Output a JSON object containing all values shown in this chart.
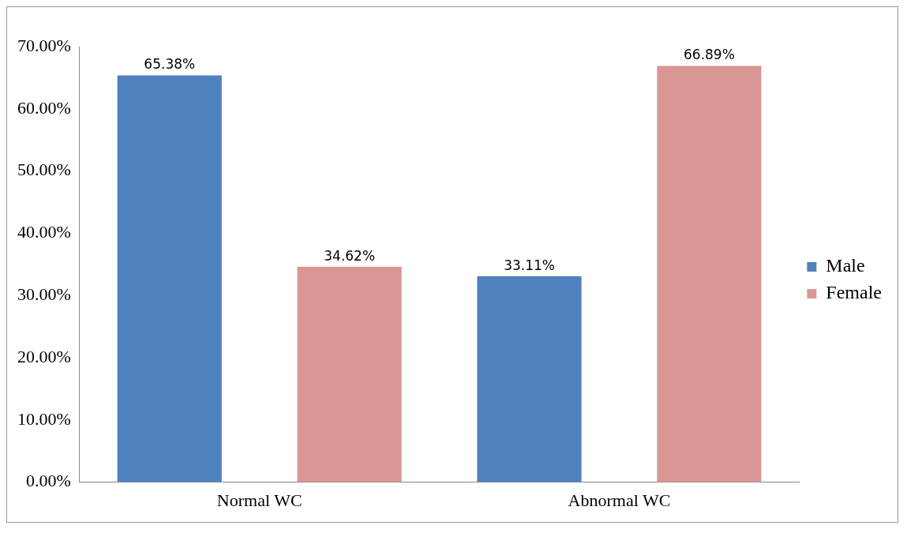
{
  "chart_data": {
    "type": "bar",
    "categories": [
      "Normal WC",
      "Abnormal WC"
    ],
    "series": [
      {
        "name": "Male",
        "color": "#4f81bd",
        "values": [
          65.38,
          33.11
        ],
        "value_labels": [
          "65.38%",
          "33.11%"
        ]
      },
      {
        "name": "Female",
        "color": "#d99694",
        "values": [
          34.62,
          66.89
        ],
        "value_labels": [
          "34.62%",
          "66.89%"
        ]
      }
    ],
    "ylim": [
      0,
      70
    ],
    "yticks": [
      {
        "value": 0,
        "label": "0.00%"
      },
      {
        "value": 10,
        "label": "10.00%"
      },
      {
        "value": 20,
        "label": "20.00%"
      },
      {
        "value": 30,
        "label": "30.00%"
      },
      {
        "value": 40,
        "label": "40.00%"
      },
      {
        "value": 50,
        "label": "50.00%"
      },
      {
        "value": 60,
        "label": "60.00%"
      },
      {
        "value": 70,
        "label": "70.00%"
      }
    ],
    "grid": false,
    "legend": "right"
  }
}
